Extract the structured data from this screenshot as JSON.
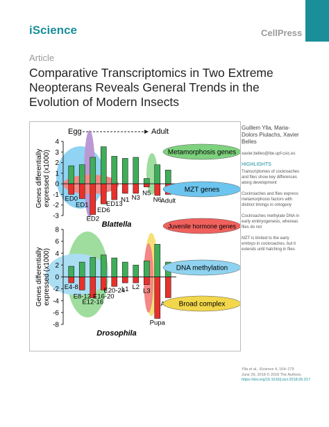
{
  "header": {
    "journal": "iScience",
    "publisher": "CellPress"
  },
  "article_type": "Article",
  "title": "Comparative Transcriptomics in Two Extreme Neopterans Reveals General Trends in the Evolution of Modern Insects",
  "figure": {
    "timeline": {
      "start": "Egg",
      "end": "Adult"
    },
    "y_axis_label": [
      "Genes differentially",
      "expressed (x1000)"
    ],
    "panels": [
      {
        "name": "Blattella",
        "categories": [
          "ED0",
          "ED1",
          "ED2",
          "ED6",
          "ED13",
          "N1",
          "N3",
          "N5",
          "N6",
          "Adult"
        ],
        "series": [
          {
            "color": "#3fae5a",
            "values": [
              1.7,
              1.8,
              2.5,
              3.5,
              2.6,
              2.4,
              2.5,
              0.5,
              1.8,
              1.3
            ]
          },
          {
            "color": "#e8312b",
            "values": [
              -1.0,
              -1.4,
              -2.9,
              -1.9,
              -1.5,
              -0.9,
              -0.9,
              -0.3,
              -1.1,
              -1.0
            ]
          }
        ],
        "ylim": [
          -3,
          4
        ],
        "yticks": [
          4,
          3,
          2,
          1,
          0,
          -1,
          -2,
          -3
        ]
      },
      {
        "name": "Drosophila",
        "categories": [
          "E4-8",
          "E8-12",
          "E12-16",
          "E16-20",
          "E20-24",
          "L1",
          "L2",
          "L3",
          "Pupa",
          "Adult"
        ],
        "series": [
          {
            "color": "#3fae5a",
            "values": [
              1.8,
              2.5,
              3.3,
              3.7,
              3.2,
              2.5,
              2.0,
              2.7,
              5.5,
              2.5
            ]
          },
          {
            "color": "#e8312b",
            "values": [
              -1.0,
              -2.2,
              -3.5,
              -2.2,
              -1.6,
              -1.0,
              -1.0,
              -1.3,
              -7.0,
              -3.5
            ]
          }
        ],
        "ylim": [
          -8,
          8
        ],
        "yticks": [
          8,
          6,
          4,
          2,
          0,
          -2,
          -4,
          -6,
          -8
        ]
      }
    ],
    "annotations": [
      {
        "label": "Metamorphosis genes",
        "color": "#7ed27e"
      },
      {
        "label": "MZT genes",
        "color": "#6cc5ee"
      },
      {
        "label": "Juvenile hormone genes",
        "color": "#f0615e"
      },
      {
        "label": "DNA methylation",
        "color": "#8fd3f0"
      },
      {
        "label": "Broad complex",
        "color": "#f2d64b"
      }
    ]
  },
  "sidebar": {
    "authors": "Guillem Ylla, Maria-Dolors Piulachs, Xavier Belles",
    "email": "xavier.belles@ibe.upf-csic.es",
    "highlights_heading": "HIGHLIGHTS",
    "highlights": [
      "Transcriptomes of cockroaches and flies show key differences along development",
      "Cockroaches and flies express metamorphosis factors with distinct timings in ontogeny",
      "Cockroaches methylate DNA in early embryogenesis, whereas flies do not",
      "MZT is limited to the early embryo in cockroaches, but it extends until hatching in flies"
    ],
    "citation": "Ylla et al., iScience 4, 164–179 June 29, 2018 © 2018 The Authors.",
    "doi": "https://doi.org/10.1016/j.isci.2018.05.017"
  }
}
